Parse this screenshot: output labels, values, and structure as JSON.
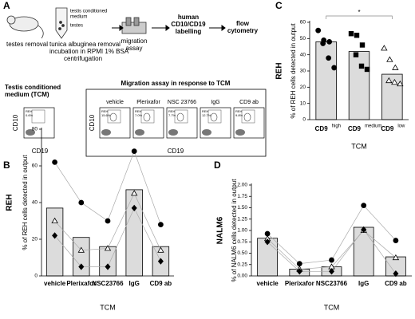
{
  "panel_labels": [
    "A",
    "B",
    "C",
    "D"
  ],
  "diagram": {
    "step1": "testes removal",
    "tube_labels": [
      "testis conditioned",
      "medium",
      "testes"
    ],
    "step2_lines": [
      "tunica albuginea removal",
      "incubation in RPMI 1% BSA",
      "centrifugation"
    ],
    "step3_lines": [
      "migration",
      "assay"
    ],
    "step4_lines": [
      "human",
      "CD10/CD19",
      "labelling"
    ],
    "step5_lines": [
      "flow",
      "cytometry"
    ],
    "tcm_title_lines": [
      "Testis conditioned",
      "medium (TCM)"
    ],
    "migration_title": "Migration assay in response to TCM",
    "axis_y": "CD10",
    "axis_x": "CD19",
    "tcm_plot": {
      "cell": "REH",
      "pct": "0.6%"
    },
    "plots": [
      {
        "title": "vehicle",
        "cell": "REH",
        "pct": "15.6%"
      },
      {
        "title": "Plerixafor",
        "cell": "REH",
        "pct": "7.0%"
      },
      {
        "title": "NSC 23766",
        "cell": "REH",
        "pct": "7.7%"
      },
      {
        "title": "IgG",
        "cell": "REH",
        "pct": "12.7%"
      },
      {
        "title": "CD9 ab",
        "cell": "REH",
        "pct": "9.8%"
      }
    ]
  },
  "chart_data": [
    {
      "type": "bar",
      "title": "REH",
      "y_label": "% of REH cells detected in output",
      "x_label": "TCM",
      "categories": [
        "vehicle",
        "Plerixafor",
        "NSC23766",
        "IgG",
        "CD9 ab"
      ],
      "values": [
        37,
        21,
        16,
        47,
        16
      ],
      "color": "#dcdcdc",
      "donors": [
        {
          "marker": "circle",
          "values": [
            62,
            40,
            30,
            68,
            28
          ]
        },
        {
          "marker": "triangle",
          "values": [
            30,
            14,
            15,
            45,
            14
          ]
        },
        {
          "marker": "diamond",
          "values": [
            22,
            5,
            5,
            37,
            8
          ]
        }
      ],
      "ylim": [
        0,
        80
      ],
      "yticks": [
        0,
        20,
        40,
        60,
        80
      ]
    },
    {
      "type": "dotbar",
      "title": "REH",
      "y_label": "% of REH cells detected in output",
      "x_label": "TCM",
      "categories": [
        "CD9",
        "CD9",
        "CD9"
      ],
      "category_superscripts": [
        "high",
        "medium",
        "low"
      ],
      "values": [
        48,
        42,
        28
      ],
      "color": "#dcdcdc",
      "markers": [
        "circle",
        "square",
        "triangle"
      ],
      "points": [
        [
          55,
          49,
          48,
          47,
          38,
          32
        ],
        [
          53,
          52,
          46,
          40,
          33,
          31
        ],
        [
          44,
          37,
          32,
          24,
          23,
          22
        ]
      ],
      "significance": "*",
      "ylim": [
        0,
        60
      ],
      "yticks": [
        0,
        10,
        20,
        30,
        40,
        50,
        60
      ]
    },
    {
      "type": "bar",
      "title": "NALM6",
      "y_label": "% of NALM6 cells detected in output",
      "x_label": "TCM",
      "categories": [
        "vehicle",
        "Plerixafor",
        "NSC23766",
        "IgG",
        "CD9 ab"
      ],
      "values": [
        0.83,
        0.15,
        0.2,
        1.07,
        0.42
      ],
      "color": "#dcdcdc",
      "donors": [
        {
          "marker": "circle",
          "values": [
            0.93,
            0.27,
            0.35,
            1.55,
            0.78
          ]
        },
        {
          "marker": "triangle",
          "values": [
            0.82,
            0.15,
            0.2,
            1.0,
            0.4
          ]
        },
        {
          "marker": "diamond",
          "values": [
            0.75,
            0.1,
            0.1,
            1.02,
            0.05
          ]
        }
      ],
      "ylim": [
        0,
        2
      ],
      "yticks": [
        {
          "value": 0,
          "label": "0.00"
        },
        {
          "value": 0.25,
          "label": "0.25"
        },
        {
          "value": 0.5,
          "label": "0.50"
        },
        {
          "value": 0.75,
          "label": "0.75"
        },
        {
          "value": 1,
          "label": "1.00"
        },
        {
          "value": 1.25,
          "label": "1.25"
        },
        {
          "value": 1.5,
          "label": "1.50"
        },
        {
          "value": 1.75,
          "label": "1.75"
        },
        {
          "value": 2,
          "label": "2.00"
        }
      ]
    }
  ]
}
